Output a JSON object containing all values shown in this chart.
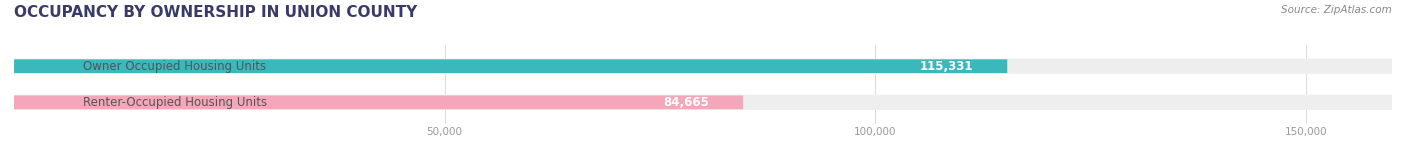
{
  "title": "OCCUPANCY BY OWNERSHIP IN UNION COUNTY",
  "source_text": "Source: ZipAtlas.com",
  "categories": [
    "Owner Occupied Housing Units",
    "Renter-Occupied Housing Units"
  ],
  "values": [
    115331,
    84665
  ],
  "bar_colors": [
    "#3ab8bc",
    "#f4a7b9"
  ],
  "bar_labels": [
    "115,331",
    "84,665"
  ],
  "xlim": [
    0,
    160000
  ],
  "xticks": [
    0,
    50000,
    100000,
    150000
  ],
  "xtick_labels": [
    "",
    "50,000",
    "100,000",
    "150,000"
  ],
  "bg_color": "#ffffff",
  "bar_bg_color": "#eeeeee",
  "title_color": "#3a3a6a",
  "label_color": "#555555",
  "value_color_inside": "#ffffff",
  "value_color_outside": "#555555",
  "tick_color": "#999999",
  "source_color": "#888888"
}
